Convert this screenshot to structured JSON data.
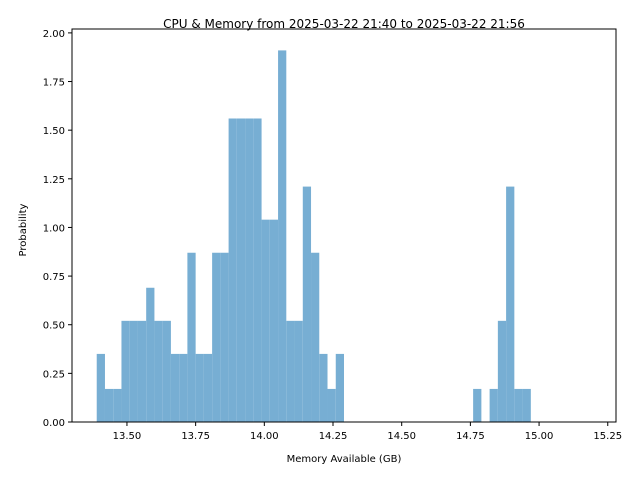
{
  "chart_data": {
    "type": "bar",
    "title": "CPU & Memory from 2025-03-22 21:40 to 2025-03-22 21:56",
    "xlabel": "Memory Available (GB)",
    "ylabel": "Probability",
    "xlim": [
      13.3,
      15.28
    ],
    "ylim": [
      0,
      2.02
    ],
    "xticks": [
      "13.50",
      "13.75",
      "14.00",
      "14.25",
      "14.50",
      "14.75",
      "15.00",
      "15.25"
    ],
    "xtick_values": [
      13.5,
      13.75,
      14.0,
      14.25,
      14.5,
      14.75,
      15.0,
      15.25
    ],
    "yticks": [
      "0.00",
      "0.25",
      "0.50",
      "0.75",
      "1.00",
      "1.25",
      "1.50",
      "1.75",
      "2.00"
    ],
    "ytick_values": [
      0,
      0.25,
      0.5,
      0.75,
      1.0,
      1.25,
      1.5,
      1.75,
      2.0
    ],
    "bar_color": "#77aed3",
    "bins": [
      {
        "x0": 13.39,
        "x1": 13.42,
        "value": 0.35
      },
      {
        "x0": 13.42,
        "x1": 13.45,
        "value": 0.17
      },
      {
        "x0": 13.45,
        "x1": 13.48,
        "value": 0.17
      },
      {
        "x0": 13.48,
        "x1": 13.51,
        "value": 0.52
      },
      {
        "x0": 13.51,
        "x1": 13.54,
        "value": 0.52
      },
      {
        "x0": 13.54,
        "x1": 13.57,
        "value": 0.52
      },
      {
        "x0": 13.57,
        "x1": 13.6,
        "value": 0.69
      },
      {
        "x0": 13.6,
        "x1": 13.63,
        "value": 0.52
      },
      {
        "x0": 13.63,
        "x1": 13.66,
        "value": 0.52
      },
      {
        "x0": 13.66,
        "x1": 13.69,
        "value": 0.35
      },
      {
        "x0": 13.69,
        "x1": 13.72,
        "value": 0.35
      },
      {
        "x0": 13.72,
        "x1": 13.75,
        "value": 0.87
      },
      {
        "x0": 13.75,
        "x1": 13.78,
        "value": 0.35
      },
      {
        "x0": 13.78,
        "x1": 13.81,
        "value": 0.35
      },
      {
        "x0": 13.81,
        "x1": 13.84,
        "value": 0.87
      },
      {
        "x0": 13.84,
        "x1": 13.87,
        "value": 0.87
      },
      {
        "x0": 13.87,
        "x1": 13.9,
        "value": 1.56
      },
      {
        "x0": 13.9,
        "x1": 13.93,
        "value": 1.56
      },
      {
        "x0": 13.93,
        "x1": 13.96,
        "value": 1.56
      },
      {
        "x0": 13.96,
        "x1": 13.99,
        "value": 1.56
      },
      {
        "x0": 13.99,
        "x1": 14.02,
        "value": 1.04
      },
      {
        "x0": 14.02,
        "x1": 14.05,
        "value": 1.04
      },
      {
        "x0": 14.05,
        "x1": 14.08,
        "value": 1.91
      },
      {
        "x0": 14.08,
        "x1": 14.11,
        "value": 0.52
      },
      {
        "x0": 14.11,
        "x1": 14.14,
        "value": 0.52
      },
      {
        "x0": 14.14,
        "x1": 14.17,
        "value": 1.21
      },
      {
        "x0": 14.17,
        "x1": 14.2,
        "value": 0.87
      },
      {
        "x0": 14.2,
        "x1": 14.23,
        "value": 0.35
      },
      {
        "x0": 14.23,
        "x1": 14.26,
        "value": 0.17
      },
      {
        "x0": 14.26,
        "x1": 14.29,
        "value": 0.35
      },
      {
        "x0": 14.29,
        "x1": 14.32,
        "value": 0.0
      },
      {
        "x0": 14.76,
        "x1": 14.79,
        "value": 0.17
      },
      {
        "x0": 14.82,
        "x1": 14.85,
        "value": 0.17
      },
      {
        "x0": 14.85,
        "x1": 14.88,
        "value": 0.52
      },
      {
        "x0": 14.88,
        "x1": 14.91,
        "value": 1.21
      },
      {
        "x0": 14.91,
        "x1": 14.94,
        "value": 0.17
      },
      {
        "x0": 14.94,
        "x1": 14.97,
        "value": 0.17
      }
    ]
  }
}
